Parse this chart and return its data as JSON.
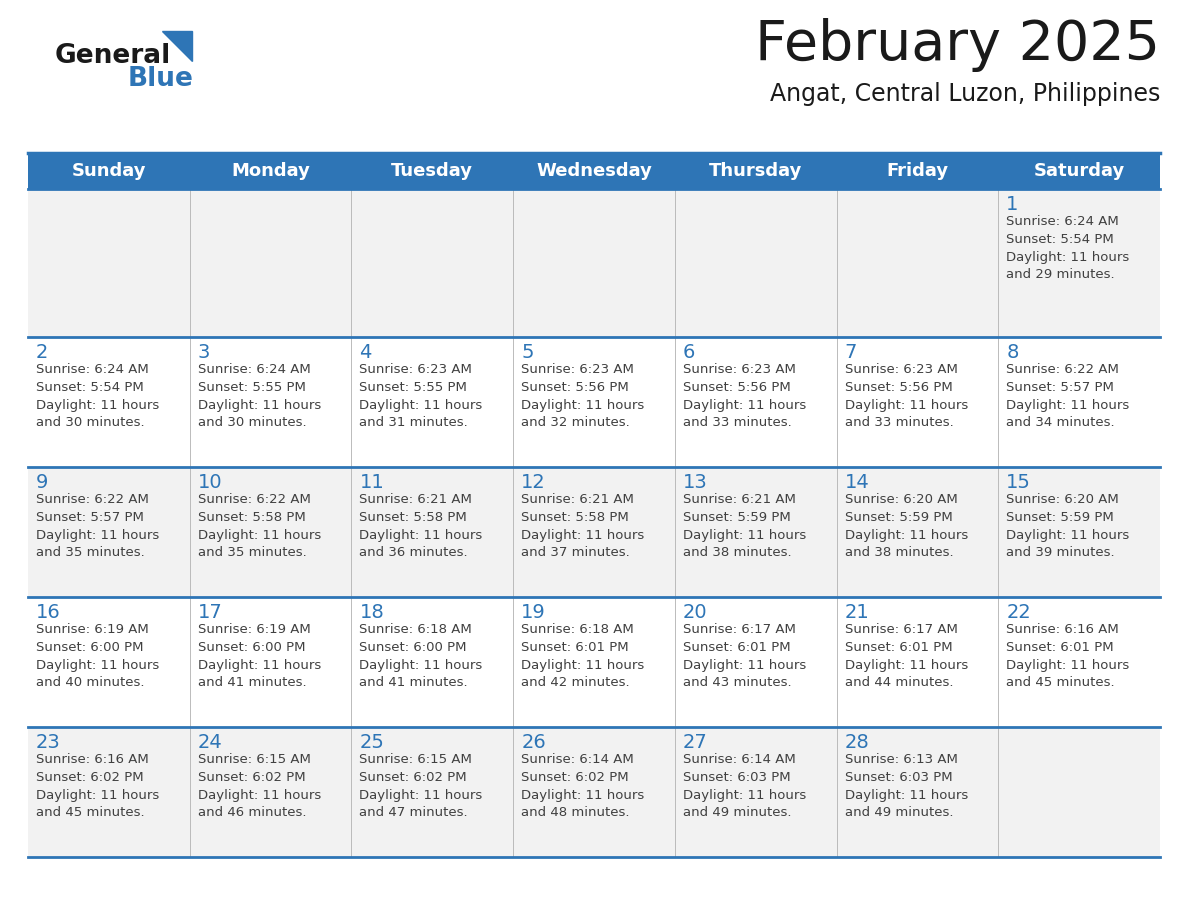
{
  "title": "February 2025",
  "subtitle": "Angat, Central Luzon, Philippines",
  "days_of_week": [
    "Sunday",
    "Monday",
    "Tuesday",
    "Wednesday",
    "Thursday",
    "Friday",
    "Saturday"
  ],
  "header_bg": "#2E75B6",
  "header_text": "#FFFFFF",
  "cell_bg_gray": "#F2F2F2",
  "cell_bg_white": "#FFFFFF",
  "separator_color": "#2E75B6",
  "text_color": "#404040",
  "day_num_color": "#2E75B6",
  "grid_line_color": "#BBBBBB",
  "calendar_data": [
    [
      null,
      null,
      null,
      null,
      null,
      null,
      {
        "day": 1,
        "sunrise": "6:24 AM",
        "sunset": "5:54 PM",
        "daylight": "11 hours and 29 minutes."
      }
    ],
    [
      {
        "day": 2,
        "sunrise": "6:24 AM",
        "sunset": "5:54 PM",
        "daylight": "11 hours and 30 minutes."
      },
      {
        "day": 3,
        "sunrise": "6:24 AM",
        "sunset": "5:55 PM",
        "daylight": "11 hours and 30 minutes."
      },
      {
        "day": 4,
        "sunrise": "6:23 AM",
        "sunset": "5:55 PM",
        "daylight": "11 hours and 31 minutes."
      },
      {
        "day": 5,
        "sunrise": "6:23 AM",
        "sunset": "5:56 PM",
        "daylight": "11 hours and 32 minutes."
      },
      {
        "day": 6,
        "sunrise": "6:23 AM",
        "sunset": "5:56 PM",
        "daylight": "11 hours and 33 minutes."
      },
      {
        "day": 7,
        "sunrise": "6:23 AM",
        "sunset": "5:56 PM",
        "daylight": "11 hours and 33 minutes."
      },
      {
        "day": 8,
        "sunrise": "6:22 AM",
        "sunset": "5:57 PM",
        "daylight": "11 hours and 34 minutes."
      }
    ],
    [
      {
        "day": 9,
        "sunrise": "6:22 AM",
        "sunset": "5:57 PM",
        "daylight": "11 hours and 35 minutes."
      },
      {
        "day": 10,
        "sunrise": "6:22 AM",
        "sunset": "5:58 PM",
        "daylight": "11 hours and 35 minutes."
      },
      {
        "day": 11,
        "sunrise": "6:21 AM",
        "sunset": "5:58 PM",
        "daylight": "11 hours and 36 minutes."
      },
      {
        "day": 12,
        "sunrise": "6:21 AM",
        "sunset": "5:58 PM",
        "daylight": "11 hours and 37 minutes."
      },
      {
        "day": 13,
        "sunrise": "6:21 AM",
        "sunset": "5:59 PM",
        "daylight": "11 hours and 38 minutes."
      },
      {
        "day": 14,
        "sunrise": "6:20 AM",
        "sunset": "5:59 PM",
        "daylight": "11 hours and 38 minutes."
      },
      {
        "day": 15,
        "sunrise": "6:20 AM",
        "sunset": "5:59 PM",
        "daylight": "11 hours and 39 minutes."
      }
    ],
    [
      {
        "day": 16,
        "sunrise": "6:19 AM",
        "sunset": "6:00 PM",
        "daylight": "11 hours and 40 minutes."
      },
      {
        "day": 17,
        "sunrise": "6:19 AM",
        "sunset": "6:00 PM",
        "daylight": "11 hours and 41 minutes."
      },
      {
        "day": 18,
        "sunrise": "6:18 AM",
        "sunset": "6:00 PM",
        "daylight": "11 hours and 41 minutes."
      },
      {
        "day": 19,
        "sunrise": "6:18 AM",
        "sunset": "6:01 PM",
        "daylight": "11 hours and 42 minutes."
      },
      {
        "day": 20,
        "sunrise": "6:17 AM",
        "sunset": "6:01 PM",
        "daylight": "11 hours and 43 minutes."
      },
      {
        "day": 21,
        "sunrise": "6:17 AM",
        "sunset": "6:01 PM",
        "daylight": "11 hours and 44 minutes."
      },
      {
        "day": 22,
        "sunrise": "6:16 AM",
        "sunset": "6:01 PM",
        "daylight": "11 hours and 45 minutes."
      }
    ],
    [
      {
        "day": 23,
        "sunrise": "6:16 AM",
        "sunset": "6:02 PM",
        "daylight": "11 hours and 45 minutes."
      },
      {
        "day": 24,
        "sunrise": "6:15 AM",
        "sunset": "6:02 PM",
        "daylight": "11 hours and 46 minutes."
      },
      {
        "day": 25,
        "sunrise": "6:15 AM",
        "sunset": "6:02 PM",
        "daylight": "11 hours and 47 minutes."
      },
      {
        "day": 26,
        "sunrise": "6:14 AM",
        "sunset": "6:02 PM",
        "daylight": "11 hours and 48 minutes."
      },
      {
        "day": 27,
        "sunrise": "6:14 AM",
        "sunset": "6:03 PM",
        "daylight": "11 hours and 49 minutes."
      },
      {
        "day": 28,
        "sunrise": "6:13 AM",
        "sunset": "6:03 PM",
        "daylight": "11 hours and 49 minutes."
      },
      null
    ]
  ],
  "logo_text_general": "General",
  "logo_text_blue": "Blue",
  "logo_general_color": "#1a1a1a",
  "logo_blue_color": "#2E75B6",
  "logo_triangle_color": "#2E75B6",
  "fig_width": 11.88,
  "fig_height": 9.18,
  "dpi": 100
}
